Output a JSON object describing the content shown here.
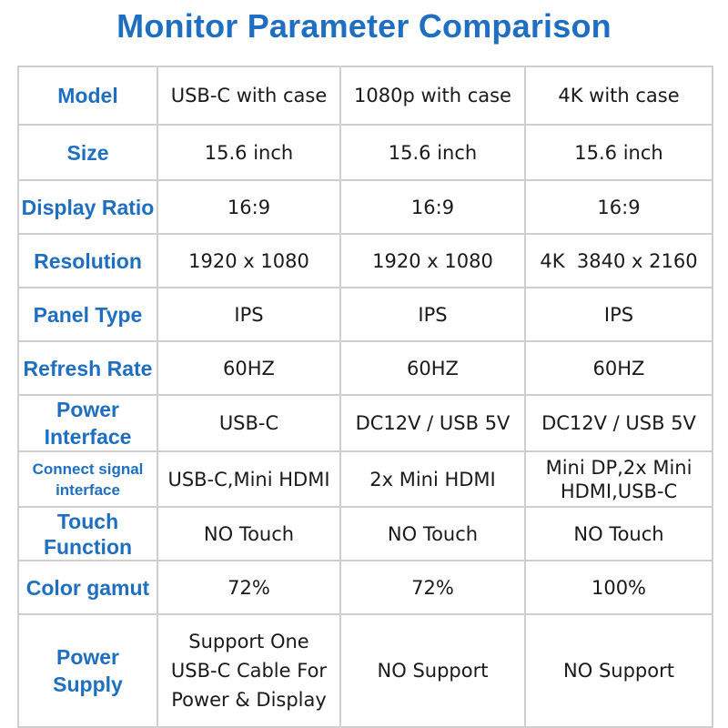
{
  "title": "Monitor Parameter Comparison",
  "columns": [
    "Model",
    "USB-C with case",
    "1080p with case",
    "4K with case"
  ],
  "rows": [
    {
      "label": "Size",
      "values": [
        "15.6 inch",
        "15.6 inch",
        "15.6 inch"
      ]
    },
    {
      "label": "Display Ratio",
      "values": [
        "16:9",
        "16:9",
        "16:9"
      ]
    },
    {
      "label": "Resolution",
      "values": [
        "1920 x 1080",
        "1920 x 1080",
        "4K  3840 x 2160"
      ]
    },
    {
      "label": "Panel Type",
      "values": [
        "IPS",
        "IPS",
        "IPS"
      ]
    },
    {
      "label": "Refresh Rate",
      "values": [
        "60HZ",
        "60HZ",
        "60HZ"
      ]
    },
    {
      "label": "Power Interface",
      "values": [
        "USB-C",
        "DC12V / USB 5V",
        "DC12V / USB 5V"
      ]
    },
    {
      "label": "Connect signal interface",
      "values": [
        "USB-C,Mini HDMI",
        "2x Mini HDMI",
        "Mini DP,2x Mini HDMI,USB-C"
      ]
    },
    {
      "label": "Touch Function",
      "values": [
        "NO Touch",
        "NO Touch",
        "NO Touch"
      ]
    },
    {
      "label": "Color gamut",
      "values": [
        "72%",
        "72%",
        "100%"
      ]
    },
    {
      "label": "Power Supply",
      "values": [
        "Support One USB-C Cable For Power & Display",
        "NO Support",
        "NO Support"
      ]
    }
  ],
  "colors": {
    "accent": "#1e6fc2",
    "border": "#cfcfcf",
    "text": "#1a1a1a"
  }
}
